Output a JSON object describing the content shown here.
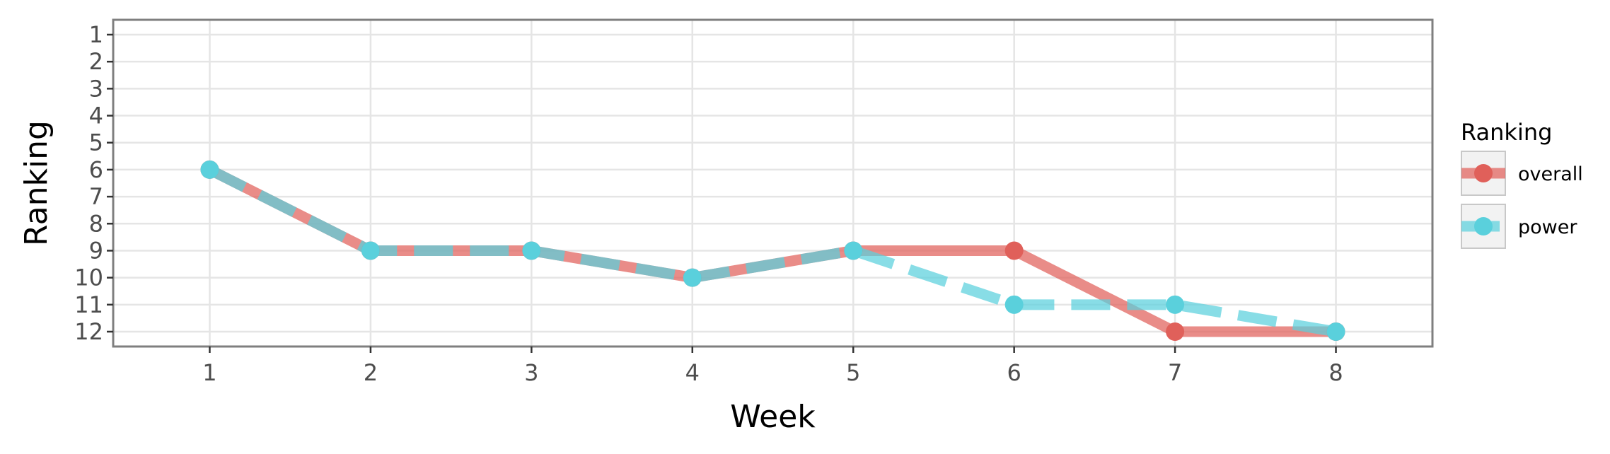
{
  "chart_data": {
    "type": "line",
    "xlabel": "Week",
    "ylabel": "Ranking",
    "x": [
      1,
      2,
      3,
      4,
      5,
      6,
      7,
      8
    ],
    "xlim": [
      0.4,
      8.6
    ],
    "ylim": [
      12.55,
      0.45
    ],
    "y_reversed": true,
    "xticks": [
      "1",
      "2",
      "3",
      "4",
      "5",
      "6",
      "7",
      "8"
    ],
    "yticks": [
      "1",
      "2",
      "3",
      "4",
      "5",
      "6",
      "7",
      "8",
      "9",
      "10",
      "11",
      "12"
    ],
    "grid": true,
    "legend": {
      "title": "Ranking",
      "position": "right"
    },
    "series": [
      {
        "name": "overall",
        "values": [
          6,
          9,
          9,
          10,
          9,
          9,
          12,
          12
        ],
        "color": "#e0605a",
        "linestyle": "solid"
      },
      {
        "name": "power",
        "values": [
          6,
          9,
          9,
          10,
          9,
          11,
          11,
          12
        ],
        "color": "#5ad0dc",
        "linestyle": "dashed"
      }
    ]
  }
}
